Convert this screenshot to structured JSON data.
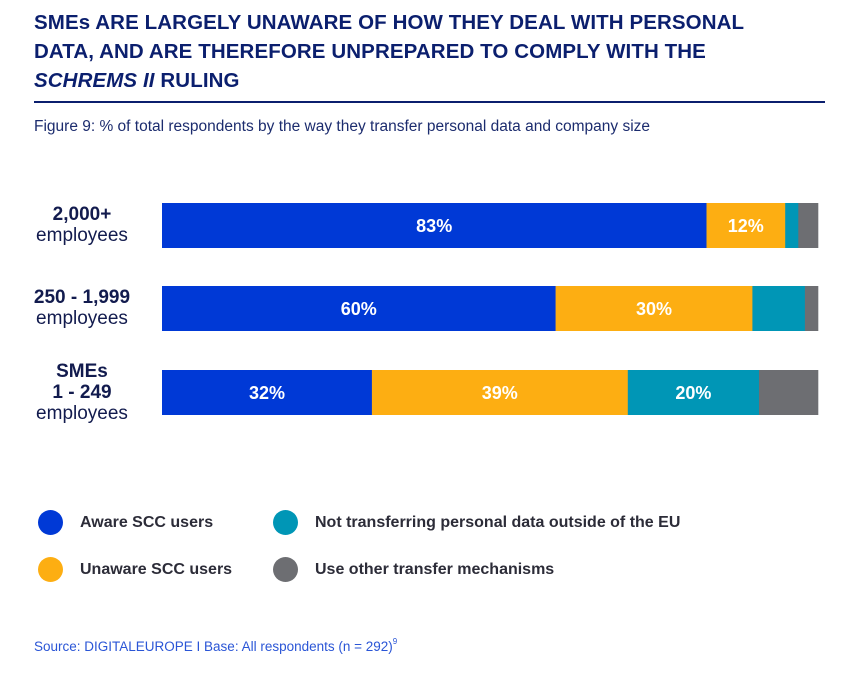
{
  "header": {
    "title_line1": "SMEs ARE LARGELY UNAWARE OF HOW THEY DEAL WITH PERSONAL",
    "title_line2": "DATA, AND ARE THEREFORE UNPREPARED TO COMPLY WITH THE",
    "title_line3_italic": "SCHREMS II",
    "title_line3_rest": " RULING",
    "subtitle": "Figure 9: % of total respondents by the way they transfer personal data and company size"
  },
  "chart_data": {
    "type": "bar",
    "orientation": "horizontal",
    "stacked": true,
    "title": "Figure 9: % of total respondents by the way they transfer personal data and company size",
    "xlabel": "",
    "ylabel": "",
    "xlim": [
      0,
      100
    ],
    "grid": false,
    "legend_position": "bottom",
    "categories": [
      {
        "bold": "2,000+",
        "bold2": "",
        "normal": "employees"
      },
      {
        "bold": "250 - 1,999",
        "bold2": "",
        "normal": "employees"
      },
      {
        "bold": "SMEs",
        "bold2": "1 - 249",
        "normal": "employees"
      }
    ],
    "series": [
      {
        "name": "Aware SCC users",
        "color": "#0039d6",
        "values": [
          83,
          60,
          32
        ],
        "labels": [
          "83%",
          "60%",
          "32%"
        ]
      },
      {
        "name": "Unaware SCC users",
        "color": "#fdae12",
        "values": [
          12,
          30,
          39
        ],
        "labels": [
          "12%",
          "30%",
          "39%"
        ]
      },
      {
        "name": "Not transferring personal data outside of the EU",
        "color": "#0096b6",
        "values": [
          2,
          8,
          20
        ],
        "labels": [
          "",
          "",
          "20%"
        ]
      },
      {
        "name": "Use other transfer mechanisms",
        "color": "#6d6e72",
        "values": [
          3,
          2,
          9
        ],
        "labels": [
          "",
          "",
          ""
        ]
      }
    ]
  },
  "legend": [
    {
      "label": "Aware SCC users",
      "color": "#0039d6"
    },
    {
      "label": "Not transferring personal data outside of the EU",
      "color": "#0096b6"
    },
    {
      "label": "Unaware SCC users",
      "color": "#fdae12"
    },
    {
      "label": "Use other transfer mechanisms",
      "color": "#6d6e72"
    }
  ],
  "footer": {
    "source": "Source: DIGITALEUROPE I Base: All respondents (n = 292)",
    "footnote_mark": "9"
  }
}
